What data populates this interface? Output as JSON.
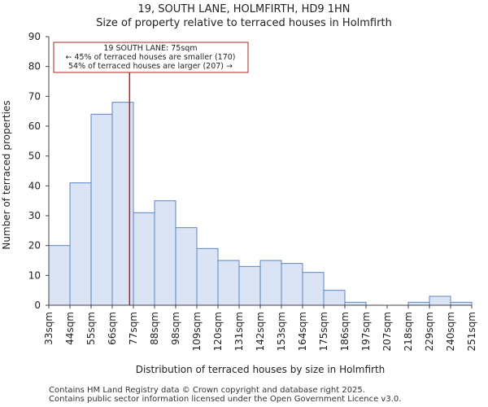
{
  "chart_data": {
    "type": "bar",
    "title": "19, SOUTH LANE, HOLMFIRTH, HD9 1HN",
    "subtitle": "Size of property relative to terraced houses in Holmfirth",
    "xlabel": "Distribution of terraced houses by size in Holmfirth",
    "ylabel": "Number of terraced properties",
    "ylim": [
      0,
      90
    ],
    "yticks": [
      0,
      10,
      20,
      30,
      40,
      50,
      60,
      70,
      80,
      90
    ],
    "bin_edges": [
      "33sqm",
      "44sqm",
      "55sqm",
      "66sqm",
      "77sqm",
      "88sqm",
      "98sqm",
      "109sqm",
      "120sqm",
      "131sqm",
      "142sqm",
      "153sqm",
      "164sqm",
      "175sqm",
      "186sqm",
      "197sqm",
      "207sqm",
      "218sqm",
      "229sqm",
      "240sqm",
      "251sqm"
    ],
    "values": [
      20,
      41,
      64,
      68,
      31,
      35,
      26,
      19,
      15,
      13,
      15,
      14,
      11,
      5,
      1,
      0,
      0,
      1,
      3,
      1
    ],
    "marker": {
      "value_sqm": 75,
      "position_in_bins": 3.82,
      "color": "#b22222",
      "label_line1": "19 SOUTH LANE: 75sqm",
      "label_line2": "← 45% of terraced houses are smaller (170)",
      "label_line3": "54% of terraced houses are larger (207) →"
    },
    "bar_fill": "#dbe4f5",
    "bar_stroke": "#5b83c6"
  },
  "footer": {
    "line1": "Contains HM Land Registry data © Crown copyright and database right 2025.",
    "line2": "Contains public sector information licensed under the Open Government Licence v3.0."
  }
}
